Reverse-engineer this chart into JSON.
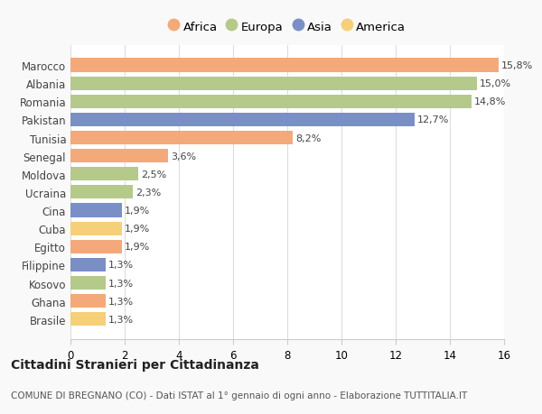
{
  "countries": [
    "Marocco",
    "Albania",
    "Romania",
    "Pakistan",
    "Tunisia",
    "Senegal",
    "Moldova",
    "Ucraina",
    "Cina",
    "Cuba",
    "Egitto",
    "Filippine",
    "Kosovo",
    "Ghana",
    "Brasile"
  ],
  "values": [
    15.8,
    15.0,
    14.8,
    12.7,
    8.2,
    3.6,
    2.5,
    2.3,
    1.9,
    1.9,
    1.9,
    1.3,
    1.3,
    1.3,
    1.3
  ],
  "labels": [
    "15,8%",
    "15,0%",
    "14,8%",
    "12,7%",
    "8,2%",
    "3,6%",
    "2,5%",
    "2,3%",
    "1,9%",
    "1,9%",
    "1,9%",
    "1,3%",
    "1,3%",
    "1,3%",
    "1,3%"
  ],
  "continents": [
    "Africa",
    "Europa",
    "Europa",
    "Asia",
    "Africa",
    "Africa",
    "Europa",
    "Europa",
    "Asia",
    "America",
    "Africa",
    "Asia",
    "Europa",
    "Africa",
    "America"
  ],
  "colors": {
    "Africa": "#F4A97A",
    "Europa": "#B5C98A",
    "Asia": "#7B8FC7",
    "America": "#F5D078"
  },
  "legend_order": [
    "Africa",
    "Europa",
    "Asia",
    "America"
  ],
  "title": "Cittadini Stranieri per Cittadinanza",
  "subtitle": "COMUNE DI BREGNANO (CO) - Dati ISTAT al 1° gennaio di ogni anno - Elaborazione TUTTITALIA.IT",
  "xlim": [
    0,
    16
  ],
  "xticks": [
    0,
    2,
    4,
    6,
    8,
    10,
    12,
    14,
    16
  ],
  "background_color": "#f9f9f9",
  "plot_background": "#ffffff",
  "bar_height": 0.75,
  "label_fontsize": 8,
  "ytick_fontsize": 8.5,
  "xtick_fontsize": 8.5,
  "legend_fontsize": 9.5,
  "title_fontsize": 10,
  "subtitle_fontsize": 7.5
}
